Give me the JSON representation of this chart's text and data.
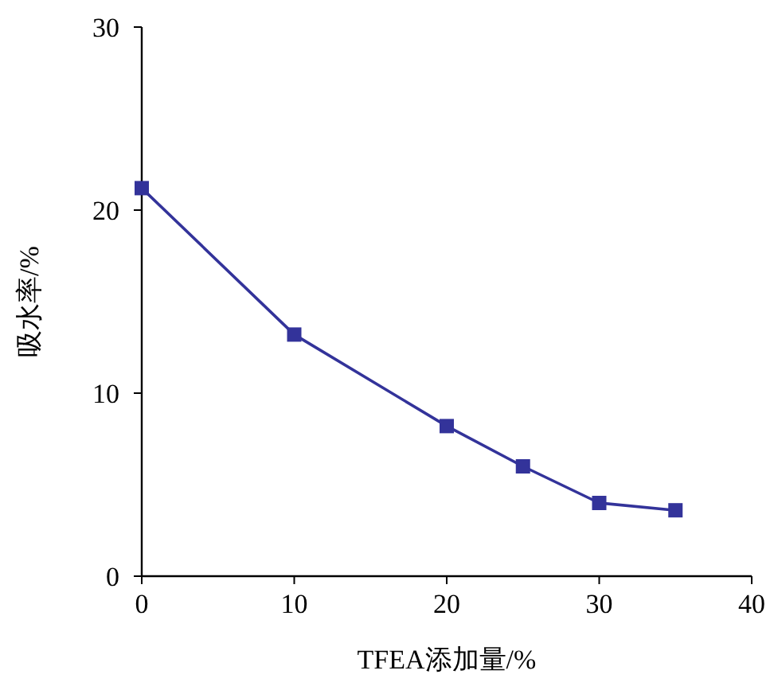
{
  "chart_data": {
    "type": "line",
    "xlabel": "TFEA添加量/%",
    "ylabel": "吸水率/%",
    "x": [
      0,
      10,
      20,
      25,
      30,
      35
    ],
    "series": [
      {
        "color": "#33339a",
        "values": [
          21.2,
          13.2,
          8.2,
          6.0,
          4.0,
          3.6
        ]
      }
    ],
    "xlim": [
      0,
      40
    ],
    "xticks": [
      0,
      10,
      20,
      30,
      40
    ],
    "ylim": [
      0,
      30
    ],
    "yticks": [
      0,
      10,
      20,
      30
    ],
    "grid": false,
    "marker": "square",
    "line_style": "solid"
  }
}
